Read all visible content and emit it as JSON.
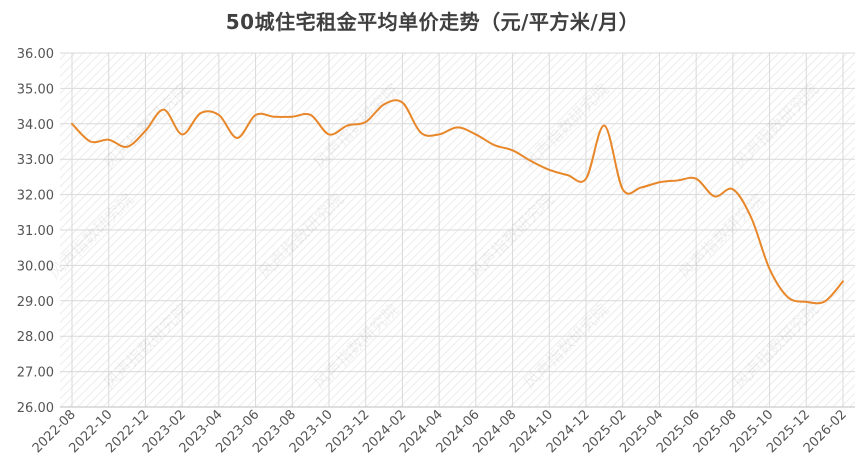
{
  "chart_data": {
    "type": "line",
    "title": "50城住宅租金平均单价走势（元/平方米/月）",
    "xlabel": "",
    "ylabel": "",
    "ylim": [
      26,
      36
    ],
    "yticks": [
      "26.00",
      "27.00",
      "28.00",
      "29.00",
      "30.00",
      "31.00",
      "32.00",
      "33.00",
      "34.00",
      "35.00",
      "36.00"
    ],
    "categories": [
      "2022-08",
      "2022-09",
      "2022-10",
      "2022-11",
      "2022-12",
      "2023-01",
      "2023-02",
      "2023-03",
      "2023-04",
      "2023-05",
      "2023-06",
      "2023-07",
      "2023-08",
      "2023-09",
      "2023-10",
      "2023-11",
      "2023-12",
      "2024-01",
      "2024-02",
      "2024-03",
      "2024-04",
      "2024-05",
      "2024-06",
      "2024-07",
      "2024-08",
      "2024-09",
      "2024-10",
      "2024-11",
      "2024-12",
      "2025-01",
      "2025-02",
      "2025-03",
      "2025-04",
      "2025-05",
      "2025-06",
      "2025-07",
      "2025-08",
      "2025-09",
      "2025-10",
      "2025-11",
      "2025-12",
      "2026-01",
      "2026-02"
    ],
    "x_tick_labels": [
      "2022-08",
      "2022-10",
      "2022-12",
      "2023-02",
      "2023-04",
      "2023-06",
      "2023-08",
      "2023-10",
      "2023-12",
      "2024-02",
      "2024-04",
      "2024-06",
      "2024-08",
      "2024-10",
      "2024-12",
      "2025-02",
      "2025-04",
      "2025-06",
      "2025-08",
      "2025-10",
      "2025-12",
      "2026-02"
    ],
    "series": [
      {
        "values": [
          34.0,
          33.5,
          33.55,
          33.35,
          33.8,
          34.4,
          33.7,
          34.3,
          34.25,
          33.6,
          34.25,
          34.2,
          34.2,
          34.25,
          33.7,
          33.95,
          34.05,
          34.55,
          34.6,
          33.75,
          33.7,
          33.9,
          33.7,
          33.4,
          33.25,
          32.95,
          32.7,
          32.55,
          32.45,
          33.95,
          32.15,
          32.2,
          32.35,
          32.4,
          32.45,
          31.95,
          32.15,
          31.35,
          29.9,
          29.1,
          28.97,
          28.98,
          29.55
        ],
        "color": "#E8872A"
      }
    ],
    "grid": true,
    "legend": "none"
  },
  "watermark": "风声指数研究院"
}
